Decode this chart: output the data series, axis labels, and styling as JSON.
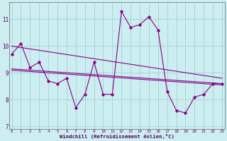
{
  "xlabel": "Windchill (Refroidissement éolien,°C)",
  "background_color": "#cceef0",
  "line_color": "#880088",
  "grid_color": "#99cccc",
  "x_values": [
    0,
    1,
    2,
    3,
    4,
    5,
    6,
    7,
    8,
    9,
    10,
    11,
    12,
    13,
    14,
    15,
    16,
    17,
    18,
    19,
    20,
    21,
    22,
    23
  ],
  "series_main": [
    9.7,
    10.1,
    9.2,
    9.4,
    8.7,
    8.6,
    8.8,
    7.7,
    8.2,
    9.4,
    8.2,
    8.2,
    11.3,
    10.7,
    10.8,
    11.1,
    10.6,
    8.3,
    7.6,
    7.5,
    8.1,
    8.2,
    8.6,
    8.6
  ],
  "series_line1_x": [
    0,
    23
  ],
  "series_line1_y": [
    10.0,
    8.8
  ],
  "series_line2_x": [
    0,
    23
  ],
  "series_line2_y": [
    9.15,
    8.6
  ],
  "series_line3_x": [
    0,
    23
  ],
  "series_line3_y": [
    9.1,
    8.55
  ],
  "ylim": [
    6.9,
    11.65
  ],
  "yticks": [
    7,
    8,
    9,
    10,
    11
  ],
  "xlim": [
    -0.3,
    23.3
  ],
  "figsize": [
    3.2,
    2.0
  ],
  "dpi": 100
}
